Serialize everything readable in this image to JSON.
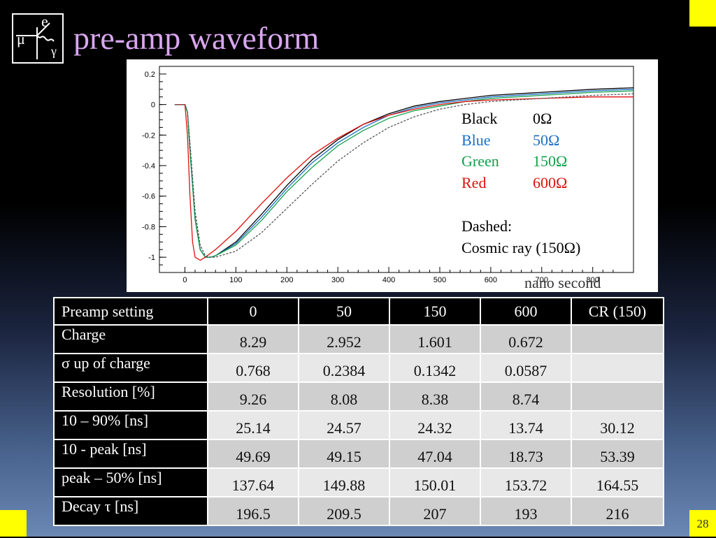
{
  "slide": {
    "title": "pre-amp waveform",
    "page_number": "28",
    "logo": {
      "letters": [
        "μ",
        "e",
        "γ"
      ],
      "icon": "mu-e-gamma-decay-logo"
    },
    "corner_color": "#ffff00"
  },
  "legend": {
    "lines": [
      {
        "label": "Black",
        "value": "0Ω",
        "color": "#000000"
      },
      {
        "label": "Blue",
        "value": "50Ω",
        "color": "#1a6fc4"
      },
      {
        "label": "Green",
        "value": "150Ω",
        "color": "#12a04a"
      },
      {
        "label": "Red",
        "value": "600Ω",
        "color": "#e01010"
      }
    ],
    "dashed_label": "Dashed:",
    "dashed_desc": "Cosmic ray (150Ω)"
  },
  "chart_data": {
    "type": "line",
    "title": "",
    "xlabel": "nano second",
    "ylabel": "",
    "xlim": [
      -50,
      880
    ],
    "ylim": [
      -1.1,
      0.25
    ],
    "x_ticks": [
      "0",
      "100",
      "200",
      "300",
      "400",
      "500",
      "600",
      "700",
      "800"
    ],
    "y_ticks": [
      "0.2",
      "0",
      "-0.2",
      "-0.4",
      "-0.6",
      "-0.8",
      "-1"
    ],
    "series": [
      {
        "name": "Black",
        "style": "solid",
        "color": "#000000",
        "x": [
          -20,
          0,
          5,
          10,
          20,
          30,
          40,
          50,
          60,
          100,
          150,
          200,
          250,
          300,
          350,
          400,
          450,
          500,
          550,
          600,
          700,
          800,
          880
        ],
        "y": [
          0,
          0,
          -0.05,
          -0.3,
          -0.75,
          -0.95,
          -1.0,
          -1.0,
          -0.99,
          -0.9,
          -0.72,
          -0.53,
          -0.36,
          -0.23,
          -0.13,
          -0.06,
          -0.01,
          0.02,
          0.04,
          0.06,
          0.08,
          0.1,
          0.11
        ]
      },
      {
        "name": "Blue",
        "style": "solid",
        "color": "#1a6fc4",
        "x": [
          -20,
          0,
          5,
          10,
          20,
          30,
          40,
          50,
          60,
          100,
          150,
          200,
          250,
          300,
          350,
          400,
          450,
          500,
          550,
          600,
          700,
          800,
          880
        ],
        "y": [
          0,
          0,
          -0.05,
          -0.3,
          -0.75,
          -0.95,
          -1.0,
          -1.0,
          -0.99,
          -0.91,
          -0.74,
          -0.55,
          -0.38,
          -0.25,
          -0.15,
          -0.07,
          -0.02,
          0.01,
          0.03,
          0.05,
          0.07,
          0.09,
          0.1
        ]
      },
      {
        "name": "Green",
        "style": "solid",
        "color": "#12a04a",
        "x": [
          -20,
          0,
          5,
          10,
          20,
          30,
          40,
          50,
          60,
          100,
          150,
          200,
          250,
          300,
          350,
          400,
          450,
          500,
          550,
          600,
          700,
          800,
          880
        ],
        "y": [
          0,
          0,
          -0.05,
          -0.3,
          -0.75,
          -0.95,
          -1.0,
          -1.0,
          -0.99,
          -0.92,
          -0.76,
          -0.57,
          -0.41,
          -0.27,
          -0.17,
          -0.09,
          -0.04,
          -0.01,
          0.02,
          0.04,
          0.06,
          0.08,
          0.09
        ]
      },
      {
        "name": "Red",
        "style": "solid",
        "color": "#e01010",
        "x": [
          -20,
          0,
          5,
          10,
          15,
          20,
          30,
          40,
          60,
          100,
          150,
          200,
          250,
          300,
          350,
          400,
          450,
          500,
          550,
          600,
          700,
          800,
          880
        ],
        "y": [
          0,
          0,
          -0.2,
          -0.6,
          -0.9,
          -1.0,
          -1.02,
          -1.0,
          -0.95,
          -0.83,
          -0.65,
          -0.48,
          -0.33,
          -0.22,
          -0.13,
          -0.07,
          -0.03,
          0.0,
          0.02,
          0.03,
          0.04,
          0.05,
          0.05
        ]
      },
      {
        "name": "Cosmic ray (150Ω)",
        "style": "dashed",
        "color": "#555555",
        "x": [
          -20,
          0,
          5,
          10,
          20,
          30,
          40,
          50,
          60,
          100,
          150,
          200,
          250,
          300,
          350,
          400,
          450,
          500,
          550,
          600,
          700,
          800,
          880
        ],
        "y": [
          0,
          0,
          -0.05,
          -0.25,
          -0.7,
          -0.92,
          -0.99,
          -1.0,
          -1.0,
          -0.96,
          -0.84,
          -0.68,
          -0.52,
          -0.37,
          -0.25,
          -0.15,
          -0.08,
          -0.03,
          0.0,
          0.02,
          0.04,
          0.06,
          0.07
        ]
      }
    ]
  },
  "table": {
    "header": [
      "Preamp setting",
      "0",
      "50",
      "150",
      "600",
      "CR (150)"
    ],
    "rows": [
      {
        "label": "Charge",
        "values": [
          "8.29",
          "2.952",
          "1.601",
          "0.672",
          ""
        ]
      },
      {
        "label": "σ up of charge",
        "values": [
          "0.768",
          "0.2384",
          "0.1342",
          "0.0587",
          ""
        ]
      },
      {
        "label": "Resolution [%]",
        "values": [
          "9.26",
          "8.08",
          "8.38",
          "8.74",
          ""
        ]
      },
      {
        "label": "10 – 90% [ns]",
        "values": [
          "25.14",
          "24.57",
          "24.32",
          "13.74",
          "30.12"
        ]
      },
      {
        "label": "10 - peak [ns]",
        "values": [
          "49.69",
          "49.15",
          "47.04",
          "18.73",
          "53.39"
        ]
      },
      {
        "label": "peak – 50% [ns]",
        "values": [
          "137.64",
          "149.88",
          "150.01",
          "153.72",
          "164.55"
        ]
      },
      {
        "label": "Decay τ [ns]",
        "values": [
          "196.5",
          "209.5",
          "207",
          "193",
          "216"
        ]
      }
    ]
  }
}
